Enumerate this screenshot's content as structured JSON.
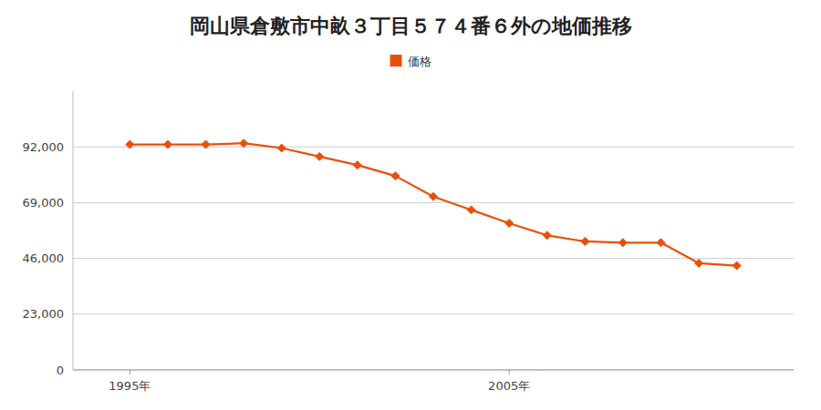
{
  "chart_data": {
    "type": "line",
    "title": "岡山県倉敷市中畝３丁目５７４番６外の地価推移",
    "x": [
      1995,
      1996,
      1997,
      1998,
      1999,
      2000,
      2001,
      2002,
      2003,
      2004,
      2005,
      2006,
      2007,
      2008,
      2009,
      2010,
      2011
    ],
    "series": [
      {
        "name": "価格",
        "color": "#E8500A",
        "marker": "diamond",
        "line_style": "solid",
        "values": [
          93000,
          93000,
          93000,
          93500,
          91500,
          88000,
          84500,
          80000,
          71500,
          66000,
          60500,
          55500,
          53000,
          52500,
          52500,
          44000,
          43000
        ]
      }
    ],
    "xlim": [
      1993.5,
      2012.5
    ],
    "xticks": [
      {
        "value": 1995,
        "label": "1995年"
      },
      {
        "value": 2005,
        "label": "2005年"
      }
    ],
    "ylim": [
      0,
      115000
    ],
    "yticks": [
      0,
      {
        "value": 23000,
        "label": "23,000"
      },
      {
        "value": 46000,
        "label": "46,000"
      },
      {
        "value": 69000,
        "label": "69,000"
      },
      {
        "value": 92000,
        "label": "92,000"
      }
    ],
    "grid": "y",
    "legend": "top"
  }
}
